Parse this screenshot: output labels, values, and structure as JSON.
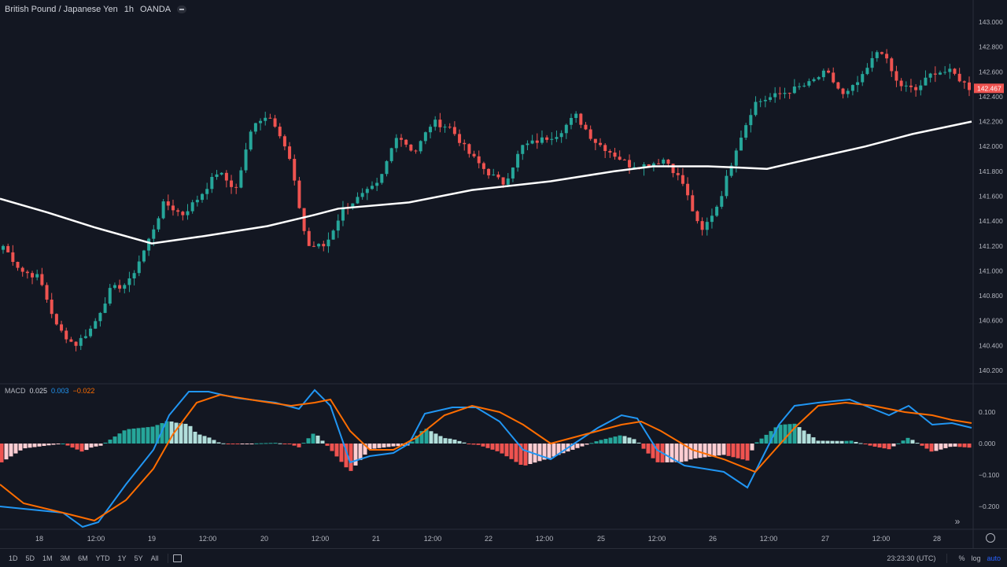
{
  "header": {
    "symbol": "British Pound / Japanese Yen",
    "interval": "1h",
    "broker": "OANDA"
  },
  "macd_legend": {
    "label": "MACD",
    "v1": "0.025",
    "v2": "0.003",
    "v3": "−0.022"
  },
  "colors": {
    "background": "#131722",
    "up": "#26a69a",
    "down": "#ef5350",
    "ma": "#ffffff",
    "macd": "#2196f3",
    "signal": "#ff6d00",
    "hist_up_strong": "#26a69a",
    "hist_up_weak": "#b2dfdb",
    "hist_down_strong": "#ef5350",
    "hist_down_weak": "#ffcdd2",
    "axis_text": "#b2b5be"
  },
  "price_axis": {
    "ticks": [
      "143.000",
      "142.800",
      "142.600",
      "142.400",
      "142.200",
      "142.000",
      "141.800",
      "141.600",
      "141.400",
      "141.200",
      "141.000",
      "140.800",
      "140.600",
      "140.400",
      "140.200"
    ],
    "last_price": "142.467"
  },
  "macd_axis": {
    "ticks": [
      "0.100",
      "0.000",
      "−0.100",
      "−0.200"
    ]
  },
  "time_axis": {
    "labels": [
      "18",
      "12:00",
      "19",
      "12:00",
      "20",
      "12:00",
      "21",
      "12:00",
      "22",
      "12:00",
      "25",
      "12:00",
      "26",
      "12:00",
      "27",
      "12:00",
      "28"
    ]
  },
  "bottom_bar": {
    "ranges": [
      "1D",
      "5D",
      "1M",
      "3M",
      "6M",
      "YTD",
      "1Y",
      "5Y",
      "All"
    ],
    "time": "23:23:30 (UTC)",
    "percent": "%",
    "log": "log",
    "auto": "auto"
  },
  "chart_data": {
    "type": "candlestick",
    "price_ylim": [
      140.2,
      143.0
    ],
    "key_closes": [
      141.2,
      141.0,
      140.95,
      140.55,
      140.4,
      140.55,
      140.85,
      140.9,
      141.2,
      141.55,
      141.45,
      141.6,
      141.8,
      141.65,
      142.2,
      142.25,
      141.9,
      141.2,
      141.2,
      141.5,
      141.6,
      141.7,
      142.1,
      141.95,
      142.2,
      142.15,
      141.95,
      141.8,
      141.7,
      142.0,
      142.05,
      142.1,
      142.25,
      142.05,
      141.95,
      141.85,
      141.85,
      141.9,
      141.7,
      141.3,
      141.55,
      142.0,
      142.35,
      142.4,
      142.45,
      142.5,
      142.6,
      142.4,
      142.55,
      142.8,
      142.5,
      142.45,
      142.6,
      142.6,
      142.47
    ],
    "ma_points": [
      [
        0,
        141.58
      ],
      [
        60,
        141.47
      ],
      [
        120,
        141.35
      ],
      [
        193,
        141.22
      ],
      [
        260,
        141.28
      ],
      [
        340,
        141.36
      ],
      [
        400,
        141.45
      ],
      [
        430,
        141.5
      ],
      [
        520,
        141.55
      ],
      [
        600,
        141.65
      ],
      [
        700,
        141.72
      ],
      [
        780,
        141.8
      ],
      [
        830,
        141.84
      ],
      [
        900,
        141.84
      ],
      [
        940,
        141.83
      ],
      [
        975,
        141.82
      ],
      [
        1030,
        141.9
      ],
      [
        1100,
        142.0
      ],
      [
        1160,
        142.1
      ],
      [
        1235,
        142.2
      ]
    ],
    "macd_ylim": [
      -0.26,
      0.18
    ],
    "macd_line": [
      [
        0,
        -0.2
      ],
      [
        40,
        -0.21
      ],
      [
        80,
        -0.22
      ],
      [
        105,
        -0.265
      ],
      [
        125,
        -0.25
      ],
      [
        160,
        -0.13
      ],
      [
        195,
        -0.02
      ],
      [
        215,
        0.09
      ],
      [
        240,
        0.165
      ],
      [
        265,
        0.165
      ],
      [
        300,
        0.145
      ],
      [
        350,
        0.13
      ],
      [
        380,
        0.11
      ],
      [
        400,
        0.17
      ],
      [
        420,
        0.12
      ],
      [
        445,
        -0.06
      ],
      [
        470,
        -0.04
      ],
      [
        500,
        -0.03
      ],
      [
        520,
        0.0
      ],
      [
        540,
        0.095
      ],
      [
        575,
        0.115
      ],
      [
        605,
        0.115
      ],
      [
        635,
        0.07
      ],
      [
        665,
        -0.02
      ],
      [
        700,
        -0.05
      ],
      [
        730,
        0.0
      ],
      [
        760,
        0.05
      ],
      [
        790,
        0.09
      ],
      [
        810,
        0.08
      ],
      [
        835,
        -0.02
      ],
      [
        870,
        -0.07
      ],
      [
        920,
        -0.09
      ],
      [
        950,
        -0.14
      ],
      [
        970,
        -0.04
      ],
      [
        990,
        0.06
      ],
      [
        1010,
        0.12
      ],
      [
        1040,
        0.13
      ],
      [
        1080,
        0.14
      ],
      [
        1100,
        0.12
      ],
      [
        1130,
        0.09
      ],
      [
        1155,
        0.12
      ],
      [
        1185,
        0.06
      ],
      [
        1210,
        0.065
      ],
      [
        1235,
        0.05
      ]
    ],
    "signal_line": [
      [
        0,
        -0.13
      ],
      [
        30,
        -0.19
      ],
      [
        80,
        -0.22
      ],
      [
        120,
        -0.245
      ],
      [
        160,
        -0.18
      ],
      [
        195,
        -0.08
      ],
      [
        220,
        0.03
      ],
      [
        250,
        0.13
      ],
      [
        280,
        0.155
      ],
      [
        330,
        0.135
      ],
      [
        370,
        0.12
      ],
      [
        400,
        0.13
      ],
      [
        420,
        0.14
      ],
      [
        445,
        0.04
      ],
      [
        470,
        -0.02
      ],
      [
        500,
        -0.02
      ],
      [
        530,
        0.02
      ],
      [
        565,
        0.09
      ],
      [
        600,
        0.12
      ],
      [
        635,
        0.1
      ],
      [
        665,
        0.06
      ],
      [
        700,
        0.0
      ],
      [
        730,
        0.02
      ],
      [
        760,
        0.04
      ],
      [
        790,
        0.06
      ],
      [
        815,
        0.07
      ],
      [
        840,
        0.04
      ],
      [
        880,
        -0.02
      ],
      [
        920,
        -0.05
      ],
      [
        960,
        -0.09
      ],
      [
        985,
        -0.02
      ],
      [
        1010,
        0.05
      ],
      [
        1040,
        0.12
      ],
      [
        1075,
        0.13
      ],
      [
        1110,
        0.12
      ],
      [
        1150,
        0.1
      ],
      [
        1185,
        0.09
      ],
      [
        1210,
        0.075
      ],
      [
        1235,
        0.065
      ]
    ],
    "time_labels": [
      "18",
      "12:00",
      "19",
      "12:00",
      "20",
      "12:00",
      "21",
      "12:00",
      "22",
      "12:00",
      "25",
      "12:00",
      "26",
      "12:00",
      "27",
      "12:00",
      "28"
    ]
  }
}
